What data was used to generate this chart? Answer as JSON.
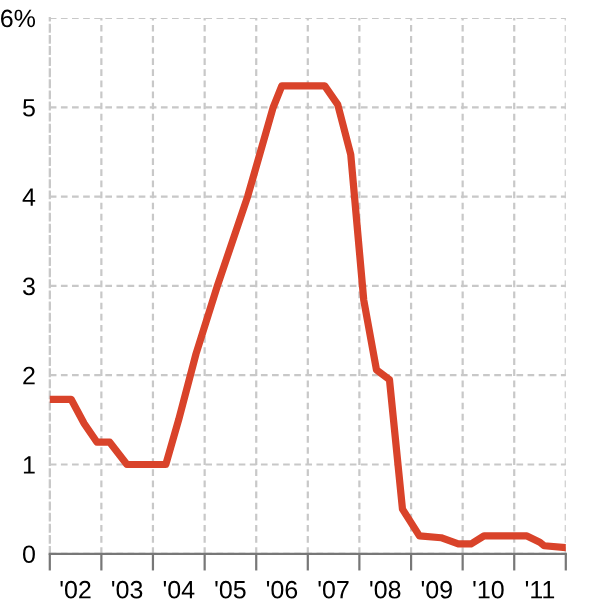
{
  "chart_data": {
    "type": "line",
    "x": [
      "2002-01-01",
      "2002-06",
      "2002-09",
      "2002-12",
      "2003-03",
      "2003-07",
      "2004-04",
      "2004-07",
      "2004-11",
      "2005-04",
      "2005-11",
      "2006-05",
      "2006-07",
      "2007-05",
      "2007-08",
      "2007-11",
      "2008-02",
      "2008-05",
      "2008-08",
      "2008-11",
      "2009-03",
      "2009-08",
      "2009-12",
      "2010-03",
      "2010-06",
      "2011-04",
      "2011-07",
      "2011-08",
      "2012-01-01"
    ],
    "series": [
      {
        "color": "#d9432a",
        "values": [
          1.73,
          1.73,
          1.46,
          1.25,
          1.25,
          1.0,
          1.0,
          1.5,
          2.24,
          3.0,
          4.0,
          5.0,
          5.24,
          5.24,
          5.03,
          4.47,
          2.84,
          2.06,
          1.95,
          0.5,
          0.2,
          0.18,
          0.11,
          0.11,
          0.2,
          0.2,
          0.13,
          0.09,
          0.07
        ]
      }
    ],
    "xlim": [
      "2002-01-01",
      "2012-01-01"
    ],
    "xticks": [
      {
        "value": "2002-01-01",
        "label": null
      },
      {
        "value": "2002-07-02",
        "label": "'02"
      },
      {
        "value": "2003-01-01",
        "label": null
      },
      {
        "value": "2003-07-02",
        "label": "'03"
      },
      {
        "value": "2004-01-01",
        "label": null
      },
      {
        "value": "2004-07-02",
        "label": "'04"
      },
      {
        "value": "2005-01-01",
        "label": null
      },
      {
        "value": "2005-07-02",
        "label": "'05"
      },
      {
        "value": "2006-01-01",
        "label": null
      },
      {
        "value": "2006-07-02",
        "label": "'06"
      },
      {
        "value": "2007-01-01",
        "label": null
      },
      {
        "value": "2007-07-02",
        "label": "'07"
      },
      {
        "value": "2008-01-01",
        "label": null
      },
      {
        "value": "2008-07-02",
        "label": "'08"
      },
      {
        "value": "2009-01-01",
        "label": null
      },
      {
        "value": "2009-07-02",
        "label": "'09"
      },
      {
        "value": "2010-01-01",
        "label": null
      },
      {
        "value": "2010-07-02",
        "label": "'10"
      },
      {
        "value": "2011-01-01",
        "label": null
      },
      {
        "value": "2011-07-02",
        "label": "'11"
      },
      {
        "value": "2012-01-01",
        "label": null
      }
    ],
    "ylim": [
      0,
      6
    ],
    "yticks": [
      0,
      1,
      2,
      3,
      4,
      5,
      {
        "value": 6,
        "label": "6%"
      }
    ],
    "grid": true,
    "marker": "none",
    "line_style": "solid"
  }
}
